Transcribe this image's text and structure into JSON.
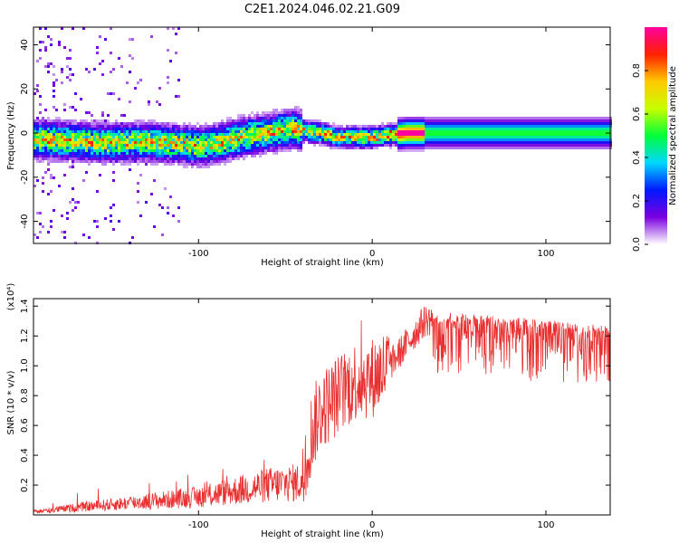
{
  "title": "C2E1.2024.046.02.21.G09",
  "chart_data": [
    {
      "type": "heatmap",
      "title": "C2E1.2024.046.02.21.G09",
      "xlabel": "Height of straight line (km)",
      "ylabel": "Frequency (Hz)",
      "xlim": [
        -195,
        137
      ],
      "ylim": [
        -50,
        48
      ],
      "x_ticks": [
        -100,
        0,
        100
      ],
      "y_ticks": [
        -40,
        -20,
        0,
        20,
        40
      ],
      "colorbar": {
        "label": "Normalized spectral amplitude",
        "range": [
          0,
          1
        ],
        "ticks": [
          0.0,
          0.2,
          0.4,
          0.6,
          0.8
        ],
        "colormap": [
          "#ffffff",
          "#7a00e0",
          "#0018ff",
          "#00d8ff",
          "#00ff3a",
          "#c8ff00",
          "#ffc800",
          "#ff2000",
          "#ff00a0"
        ]
      },
      "ridge": {
        "x": [
          -190,
          -170,
          -150,
          -130,
          -110,
          -100,
          -90,
          -80,
          -70,
          -60,
          -50,
          -45,
          -40,
          -30,
          -20,
          -10,
          0,
          10,
          20,
          40,
          60,
          80,
          100,
          120,
          137
        ],
        "y": [
          -3,
          -4,
          -4.5,
          -4,
          -5,
          -6,
          -5,
          -3,
          -1,
          0,
          1.5,
          2,
          1,
          0,
          -2,
          -2,
          -2,
          -1,
          0,
          0,
          0,
          0,
          0,
          0,
          0
        ]
      }
    },
    {
      "type": "line",
      "xlabel": "Height of straight line (km)",
      "ylabel": "SNR (10 * v/v)",
      "y_multiplier": "(x10⁴)",
      "xlim": [
        -195,
        137
      ],
      "ylim": [
        0,
        1.45
      ],
      "x_ticks": [
        -100,
        0,
        100
      ],
      "y_ticks": [
        0.2,
        0.4,
        0.6,
        0.8,
        1.0,
        1.2,
        1.4
      ],
      "color": "#e83030",
      "envelope": {
        "x": [
          -195,
          -170,
          -150,
          -120,
          -100,
          -80,
          -60,
          -40,
          -35,
          -30,
          -20,
          -10,
          0,
          10,
          20,
          30,
          40,
          60,
          80,
          100,
          120,
          137
        ],
        "y": [
          0.02,
          0.05,
          0.07,
          0.1,
          0.12,
          0.16,
          0.2,
          0.22,
          0.55,
          0.7,
          0.8,
          0.9,
          0.92,
          1.0,
          1.15,
          1.3,
          1.33,
          1.32,
          1.3,
          1.28,
          1.26,
          1.25
        ]
      }
    }
  ]
}
